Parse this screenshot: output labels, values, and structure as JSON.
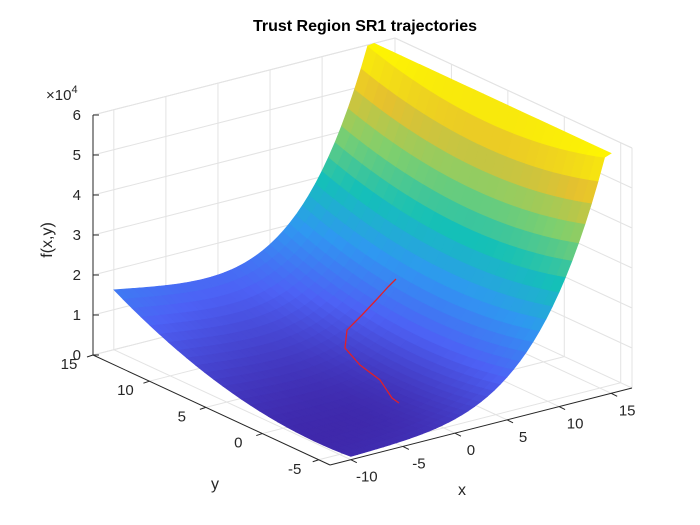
{
  "chart_data": {
    "type": "surface",
    "title": "Trust Region SR1 trajectories",
    "xlabel": "x",
    "ylabel": "y",
    "zlabel": "f(x,y)",
    "z_multiplier": "×10",
    "z_multiplier_exp": "4",
    "xlim": [
      -12,
      17
    ],
    "ylim": [
      -6,
      15
    ],
    "zlim": [
      0,
      60000
    ],
    "x_ticks": [
      "-10",
      "-5",
      "0",
      "5",
      "10",
      "15"
    ],
    "y_ticks": [
      "-5",
      "0",
      "5",
      "10",
      "15"
    ],
    "z_ticks": [
      "0",
      "1",
      "2",
      "3",
      "4",
      "5",
      "6"
    ],
    "x_tick_values": [
      -10,
      -5,
      0,
      5,
      10,
      15
    ],
    "y_tick_values": [
      -5,
      0,
      5,
      10,
      15
    ],
    "z_tick_values": [
      0,
      1,
      2,
      3,
      4,
      5,
      6
    ],
    "colormap": [
      "#3e26a8",
      "#4d61f5",
      "#2f98f1",
      "#14c0b8",
      "#7ecf6e",
      "#e6c12e",
      "#fff700"
    ],
    "grid": true,
    "surface_function": "(x-1)^4 + (x-y)^2 style valley rising steeply along x",
    "trajectory": {
      "color": "#e0202a",
      "x": [
        -1,
        -0.5,
        0,
        1,
        2,
        4,
        6,
        8,
        10
      ],
      "y": [
        -3,
        -1,
        1,
        3,
        4.5,
        6,
        7,
        8,
        9
      ]
    }
  }
}
